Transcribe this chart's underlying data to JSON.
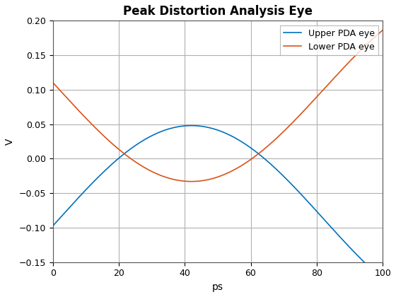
{
  "title": "Peak Distortion Analysis Eye",
  "xlabel": "ps",
  "ylabel": "V",
  "xlim": [
    0,
    100
  ],
  "ylim": [
    -0.15,
    0.2
  ],
  "xticks": [
    0,
    20,
    40,
    60,
    80,
    100
  ],
  "yticks": [
    -0.15,
    -0.1,
    -0.05,
    0.0,
    0.05,
    0.1,
    0.15,
    0.2
  ],
  "upper_color": "#0072BD",
  "lower_color": "#D95319",
  "upper_label": "Upper PDA eye",
  "lower_label": "Lower PDA eye",
  "grid_color": "#b0b0b0",
  "background_color": "#ffffff",
  "line_width": 1.2,
  "legend_fontsize": 9,
  "title_fontsize": 12,
  "label_fontsize": 10,
  "upper_dc": -0.026,
  "upper_amp": 0.074,
  "upper_half_period": 47,
  "upper_phase_shift": -20,
  "lower_dc": 0.04,
  "lower_amp": 0.073,
  "lower_half_period": 47,
  "lower_phase_shift": -20
}
